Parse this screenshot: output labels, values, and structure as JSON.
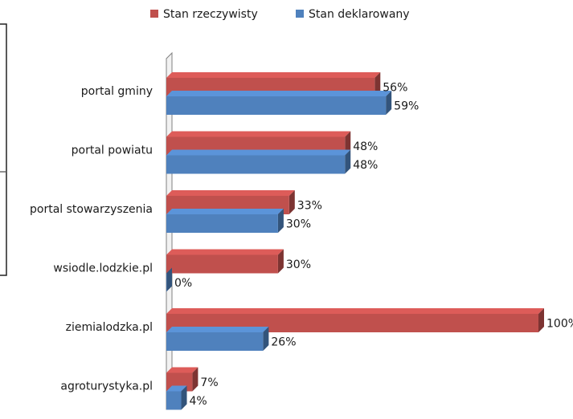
{
  "chart_data": {
    "type": "bar",
    "orientation": "horizontal",
    "style": "3d",
    "categories": [
      "portal gminy",
      "portal powiatu",
      "portal stowarzyszenia",
      "wsiodle.lodzkie.pl",
      "ziemialodzka.pl",
      "agroturystyka.pl"
    ],
    "series": [
      {
        "name": "Stan rzeczywisty",
        "color": "#c0504d",
        "values": [
          56,
          48,
          33,
          30,
          100,
          7
        ],
        "labels": [
          "56%",
          "48%",
          "33%",
          "30%",
          "100%",
          "7%"
        ]
      },
      {
        "name": "Stan deklarowany",
        "color": "#4f81bd",
        "values": [
          59,
          48,
          30,
          0,
          26,
          4
        ],
        "labels": [
          "59%",
          "48%",
          "30%",
          "0%",
          "26%",
          "4%"
        ]
      }
    ],
    "xlim": [
      0,
      100
    ],
    "legend_position": "top",
    "grid": false,
    "title": "",
    "xlabel": "",
    "ylabel": ""
  }
}
